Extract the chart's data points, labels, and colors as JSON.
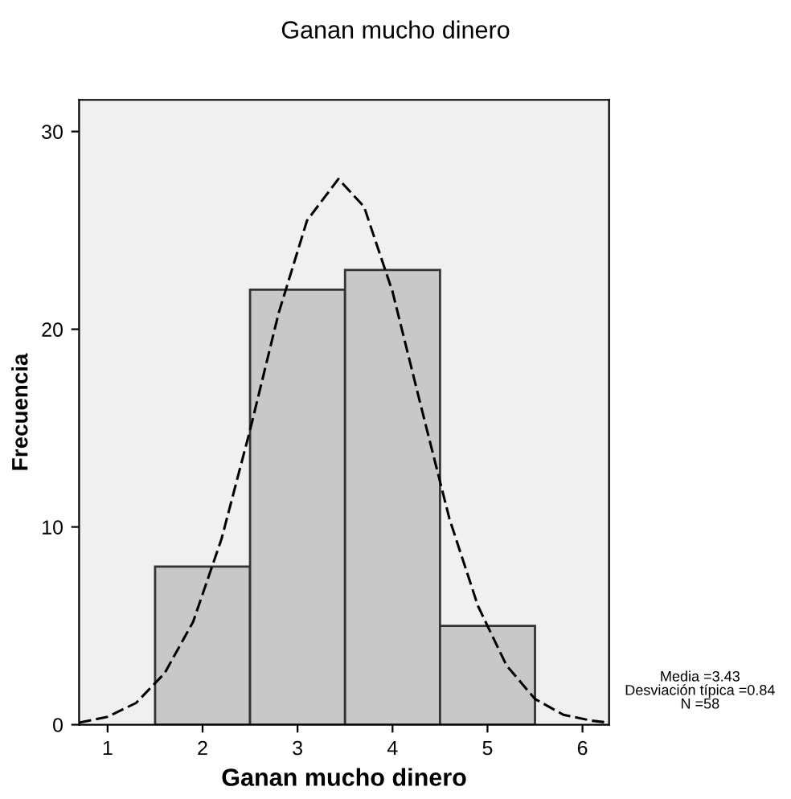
{
  "chart_data": {
    "type": "histogram",
    "title": "Ganan mucho dinero",
    "xlabel": "Ganan mucho dinero",
    "ylabel": "Frecuencia",
    "bins": [
      1.5,
      2.5,
      3.5,
      4.5,
      5.5
    ],
    "values": [
      8,
      22,
      23,
      5
    ],
    "color": "#c8c8c8",
    "series": [
      {
        "type": "line",
        "line_style": "dashed",
        "color": "#000000",
        "x": [
          0.7,
          1.0,
          1.3,
          1.6,
          1.9,
          2.2,
          2.5,
          2.8,
          3.1,
          3.43,
          3.7,
          4.0,
          4.3,
          4.6,
          4.9,
          5.2,
          5.5,
          5.8,
          6.1,
          6.28
        ],
        "values": [
          0.1,
          0.4,
          1.1,
          2.6,
          5.2,
          9.4,
          14.9,
          20.8,
          25.5,
          27.6,
          26.2,
          21.9,
          16.1,
          10.4,
          6.0,
          3.0,
          1.3,
          0.5,
          0.2,
          0.1
        ]
      }
    ],
    "xlim": [
      0.7,
      6.28
    ],
    "xticks": [
      1,
      2,
      3,
      4,
      5,
      6
    ],
    "ylim": [
      0,
      31.6
    ],
    "yticks": [
      0,
      10,
      20,
      30
    ],
    "grid": false,
    "annotations": [
      "Media =3.43\nDesviación típica =0.84\nN =58"
    ]
  }
}
